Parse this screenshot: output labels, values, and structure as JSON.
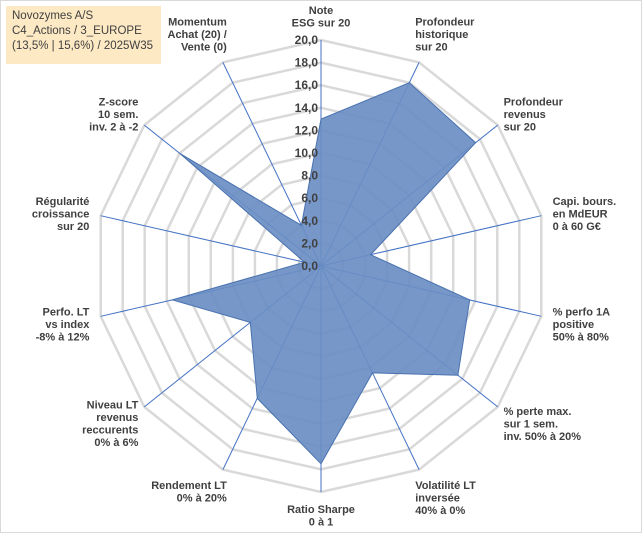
{
  "info": {
    "line1": "Novozymes A/S",
    "line2": "C4_Actions / 3_EUROPE",
    "line3": "(13,5% | 15,6%) / 2025W35"
  },
  "chart_data": {
    "type": "radar",
    "r_range": [
      0,
      20
    ],
    "r_ticks": [
      "0,0",
      "2,0",
      "4,0",
      "6,0",
      "8,0",
      "10,0",
      "12,0",
      "14,0",
      "16,0",
      "18,0",
      "20,0"
    ],
    "grid": true,
    "colors": {
      "fill": "#6a8ec3",
      "line": "#4a72b0",
      "spoke": "#4472c4",
      "grid": "#d9d9d9"
    },
    "axes": [
      {
        "label": [
          "Note",
          "ESG sur 20"
        ],
        "value": 13.0
      },
      {
        "label": [
          "Profondeur",
          "historique",
          "sur 20"
        ],
        "value": 18.0
      },
      {
        "label": [
          "Profondeur",
          "revenus",
          "sur 20"
        ],
        "value": 17.5
      },
      {
        "label": [
          "Capi. bours.",
          "en MdEUR",
          "0 à 60 G€"
        ],
        "value": 4.5
      },
      {
        "label": [
          "% perfo 1A",
          "positive",
          "50% à 80%"
        ],
        "value": 13.5
      },
      {
        "label": [
          "% perte max.",
          "sur 1 sem.",
          "inv. 50% à 20%"
        ],
        "value": 15.5
      },
      {
        "label": [
          "Volatilité LT",
          "inversée",
          "40% à 0%"
        ],
        "value": 10.5
      },
      {
        "label": [
          "Ratio Sharpe",
          "0 à 1"
        ],
        "value": 17.5
      },
      {
        "label": [
          "Rendement LT",
          "0% à 20%"
        ],
        "value": 13.0
      },
      {
        "label": [
          "Niveau LT",
          "revenus",
          "reccurents",
          "0% à 6%"
        ],
        "value": 8.0
      },
      {
        "label": [
          "Perfo. LT",
          "vs index",
          "-8% à 12%"
        ],
        "value": 13.5
      },
      {
        "label": [
          "Régularité",
          "croissance",
          "sur 20"
        ],
        "value": 1.5
      },
      {
        "label": [
          "Z-score",
          "10 sem.",
          "inv. 2 à -2"
        ],
        "value": 16.0
      },
      {
        "label": [
          "Momentum",
          "Achat (20) /",
          "Vente (0)"
        ],
        "value": 4.0
      }
    ]
  }
}
